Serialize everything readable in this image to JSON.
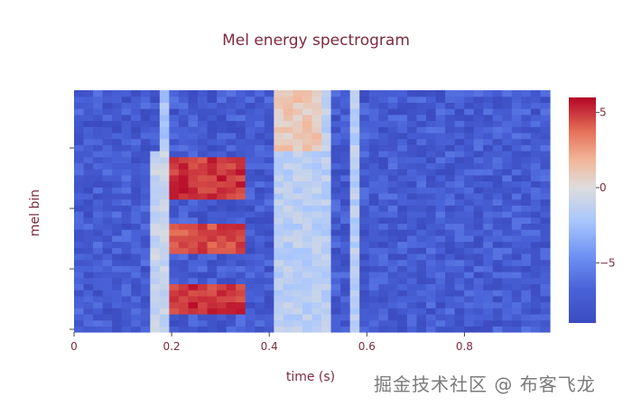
{
  "chart_data": {
    "type": "heatmap",
    "title": "Mel energy spectrogram",
    "xlabel": "time (s)",
    "ylabel": "mel bin",
    "x_ticks": [
      0,
      0.2,
      0.4,
      0.6,
      0.8
    ],
    "x_tick_labels": [
      "0",
      "0.2",
      "0.4",
      "0.6",
      "0.8"
    ],
    "xlim": [
      0,
      0.975
    ],
    "y_ticks_labeled": false,
    "colorscale": "coolwarm",
    "colors": {
      "low": "#3b4cc0",
      "mid": "#dddddd",
      "high": "#b40426"
    },
    "colorbar": {
      "range": [
        -9,
        6
      ],
      "ticks": [
        5,
        0,
        -5
      ],
      "tick_labels": [
        "5",
        "0",
        "−5"
      ]
    },
    "n_time_frames": 50,
    "n_mel_bins": 40,
    "background_level": -7.5,
    "regions": [
      {
        "description": "low-frequency onset",
        "t_start": 0.15,
        "t_end": 0.19,
        "bins_bottom_fraction": [
          0.0,
          0.75
        ],
        "level": -1
      },
      {
        "description": "vertical burst",
        "t_start": 0.17,
        "t_end": 0.19,
        "bins_bottom_fraction": [
          0.0,
          1.0
        ],
        "level": -2
      },
      {
        "description": "lower band",
        "t_start": 0.2,
        "t_end": 0.35,
        "bins_bottom_fraction": [
          0.08,
          0.2
        ],
        "level": 5
      },
      {
        "description": "middle band",
        "t_start": 0.2,
        "t_end": 0.35,
        "bins_bottom_fraction": [
          0.32,
          0.45
        ],
        "level": 4.5
      },
      {
        "description": "upper band",
        "t_start": 0.2,
        "t_end": 0.36,
        "bins_bottom_fraction": [
          0.55,
          0.72
        ],
        "level": 5
      },
      {
        "description": "broadband noise",
        "t_start": 0.4,
        "t_end": 0.52,
        "bins_bottom_fraction": [
          0.0,
          1.0
        ],
        "level": -1.5
      },
      {
        "description": "high-frequency noise",
        "t_start": 0.4,
        "t_end": 0.51,
        "bins_bottom_fraction": [
          0.75,
          1.0
        ],
        "level": 1
      },
      {
        "description": "click",
        "t_start": 0.57,
        "t_end": 0.585,
        "bins_bottom_fraction": [
          0.0,
          1.0
        ],
        "level": -1.5
      }
    ]
  },
  "watermark": "掘金技术社区 @ 布客飞龙"
}
